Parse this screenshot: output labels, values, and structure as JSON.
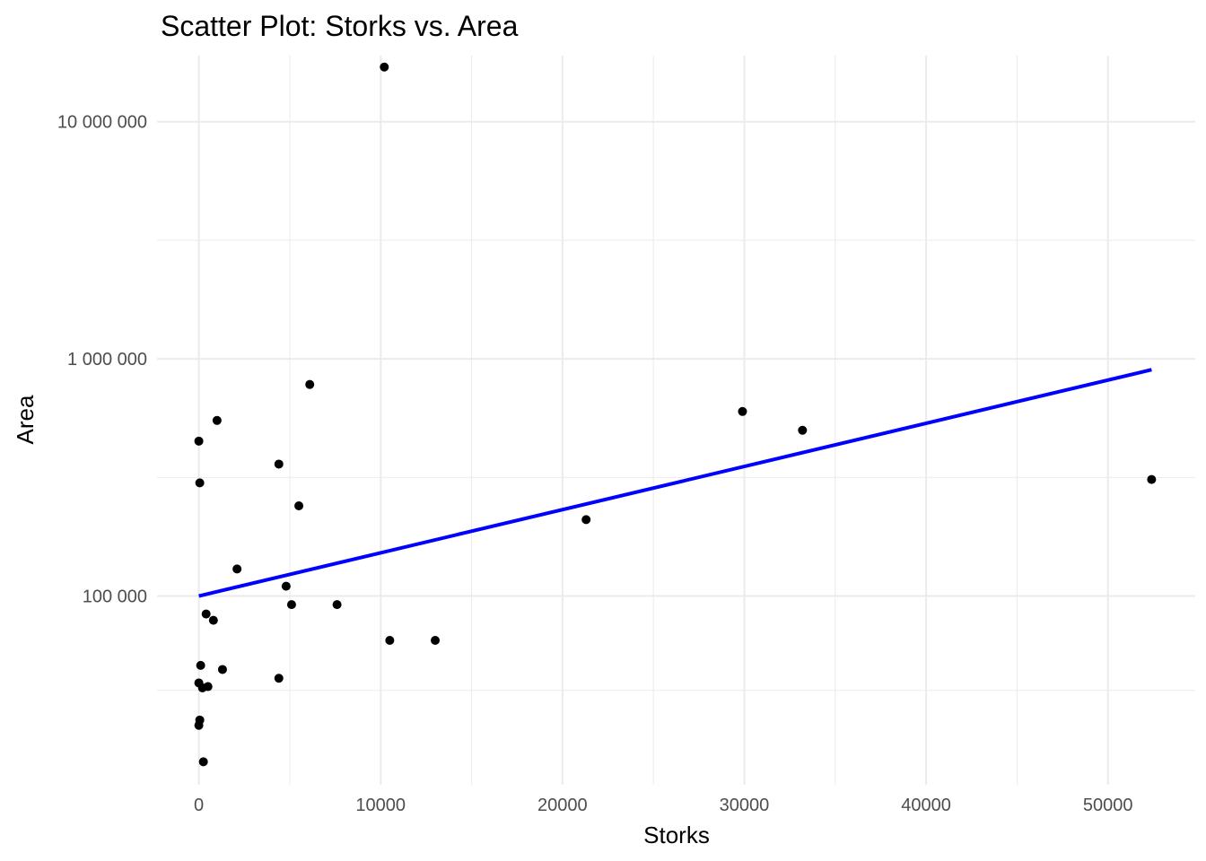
{
  "chart_data": {
    "type": "scatter",
    "title": "Scatter Plot: Storks vs. Area",
    "xlabel": "Storks",
    "ylabel": "Area",
    "xlim": [
      -2300,
      54800
    ],
    "ylim": [
      16000,
      19000000
    ],
    "yscale": "log",
    "x_ticks": [
      0,
      10000,
      20000,
      30000,
      40000,
      50000
    ],
    "x_tick_labels": [
      "0",
      "10000",
      "20000",
      "30000",
      "40000",
      "50000"
    ],
    "y_ticks": [
      100000,
      1000000,
      10000000
    ],
    "y_tick_labels": [
      "100 000",
      "1 000 000",
      "10 000 000"
    ],
    "grid": true,
    "point_color": "#000000",
    "trend_color": "#0000ff",
    "points": [
      {
        "x": 10200,
        "y": 17000000
      },
      {
        "x": 6100,
        "y": 780000
      },
      {
        "x": 1000,
        "y": 550000
      },
      {
        "x": 0,
        "y": 450000
      },
      {
        "x": 4400,
        "y": 360000
      },
      {
        "x": 50,
        "y": 300000
      },
      {
        "x": 5500,
        "y": 240000
      },
      {
        "x": 2100,
        "y": 130000
      },
      {
        "x": 4800,
        "y": 110000
      },
      {
        "x": 5100,
        "y": 92000
      },
      {
        "x": 7600,
        "y": 92000
      },
      {
        "x": 400,
        "y": 84000
      },
      {
        "x": 800,
        "y": 79000
      },
      {
        "x": 10500,
        "y": 65000
      },
      {
        "x": 13000,
        "y": 65000
      },
      {
        "x": 100,
        "y": 51000
      },
      {
        "x": 1300,
        "y": 49000
      },
      {
        "x": 4400,
        "y": 45000
      },
      {
        "x": 0,
        "y": 43000
      },
      {
        "x": 200,
        "y": 41000
      },
      {
        "x": 500,
        "y": 41500
      },
      {
        "x": 50,
        "y": 30000
      },
      {
        "x": 0,
        "y": 28500
      },
      {
        "x": 250,
        "y": 20000
      },
      {
        "x": 21300,
        "y": 210000
      },
      {
        "x": 29900,
        "y": 600000
      },
      {
        "x": 33200,
        "y": 500000
      },
      {
        "x": 52400,
        "y": 310000
      }
    ],
    "trend_line": {
      "x": [
        0,
        52400
      ],
      "y": [
        100000,
        900000
      ]
    }
  }
}
